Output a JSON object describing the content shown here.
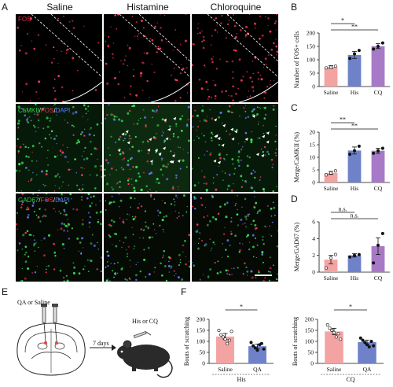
{
  "panel_letters": {
    "a": "A",
    "b": "B",
    "c": "C",
    "d": "D",
    "e": "E",
    "f": "F"
  },
  "columns": [
    "Saline",
    "Histamine",
    "Chloroquine"
  ],
  "row_labels": {
    "fos": [
      {
        "text": "FOS",
        "color": "#e8304a"
      }
    ],
    "camk": [
      {
        "text": "CaMKII",
        "color": "#33d14a"
      },
      {
        "text": "/",
        "color": "#dddddd"
      },
      {
        "text": "FOS",
        "color": "#e8304a"
      },
      {
        "text": "/",
        "color": "#dddddd"
      },
      {
        "text": "DAPI",
        "color": "#5f7dff"
      }
    ],
    "gad": [
      {
        "text": "GAD67",
        "color": "#33d14a"
      },
      {
        "text": "/",
        "color": "#dddddd"
      },
      {
        "text": "FOS",
        "color": "#e8304a"
      },
      {
        "text": "/",
        "color": "#dddddd"
      },
      {
        "text": "DAPI",
        "color": "#5f7dff"
      }
    ]
  },
  "schematic": {
    "injection_label": "QA or Saline",
    "days_label": "7 days",
    "treatment_label": "His or CQ"
  },
  "chart_data": [
    {
      "panel": "B",
      "type": "bar",
      "categories": [
        "Saline",
        "His",
        "CQ"
      ],
      "values": [
        73,
        118,
        151
      ],
      "errors": [
        5,
        13,
        9
      ],
      "points": [
        [
          70,
          72,
          76
        ],
        [
          105,
          122,
          135
        ],
        [
          140,
          150,
          163
        ]
      ],
      "colors": [
        "#f4a3a3",
        "#6f82c9",
        "#a779c6"
      ],
      "ylabel": "Number of FOS+ cells",
      "yticks": [
        0,
        50,
        100,
        150,
        200
      ],
      "ylim": [
        0,
        200
      ],
      "significance": [
        {
          "from": 0,
          "to": 1,
          "label": "*"
        },
        {
          "from": 0,
          "to": 2,
          "label": "**"
        }
      ]
    },
    {
      "panel": "C",
      "type": "bar",
      "categories": [
        "Saline",
        "His",
        "CQ"
      ],
      "values": [
        3.8,
        12.7,
        12.6
      ],
      "errors": [
        0.6,
        1.4,
        1.0
      ],
      "points": [
        [
          3.0,
          3.8,
          4.6
        ],
        [
          11.2,
          12.6,
          14.4
        ],
        [
          11.6,
          12.6,
          13.6
        ]
      ],
      "colors": [
        "#f4a3a3",
        "#6f82c9",
        "#a779c6"
      ],
      "ylabel": "Merge/CaMKII (%)",
      "yticks": [
        0,
        5,
        10,
        15,
        20
      ],
      "ylim": [
        0,
        20
      ],
      "significance": [
        {
          "from": 0,
          "to": 1,
          "label": "**"
        },
        {
          "from": 0,
          "to": 2,
          "label": "**"
        }
      ]
    },
    {
      "panel": "D",
      "type": "bar",
      "categories": [
        "Saline",
        "His",
        "CQ"
      ],
      "values": [
        1.5,
        2.0,
        3.1
      ],
      "errors": [
        0.5,
        0.2,
        1.0
      ],
      "points": [
        [
          0.5,
          1.7,
          2.1
        ],
        [
          1.8,
          2.0,
          2.1
        ],
        [
          1.1,
          3.2,
          4.6
        ]
      ],
      "colors": [
        "#f4a3a3",
        "#6f82c9",
        "#a779c6"
      ],
      "ylabel": "Merge/GAD67 (%)",
      "yticks": [
        0,
        2,
        4,
        6
      ],
      "ylim": [
        0,
        6
      ],
      "significance": [
        {
          "from": 0,
          "to": 1,
          "label": "n.s."
        },
        {
          "from": 0,
          "to": 2,
          "label": "n.s."
        }
      ]
    },
    {
      "panel": "F-His",
      "type": "bar",
      "categories": [
        "Saline",
        "QA"
      ],
      "group_label": "His",
      "values": [
        122,
        78
      ],
      "errors": [
        14,
        10
      ],
      "points": [
        [
          150,
          130,
          120,
          110,
          90,
          105,
          145
        ],
        [
          95,
          80,
          70,
          60,
          85,
          90,
          65
        ]
      ],
      "colors": [
        "#f4a3a3",
        "#6f82c9"
      ],
      "ylabel": "Bouts of scratching",
      "yticks": [
        0,
        50,
        100,
        150,
        200
      ],
      "ylim": [
        0,
        200
      ],
      "significance": [
        {
          "from": 0,
          "to": 1,
          "label": "*"
        }
      ]
    },
    {
      "panel": "F-CQ",
      "type": "bar",
      "categories": [
        "Saline",
        "QA"
      ],
      "group_label": "CQ",
      "values": [
        145,
        97
      ],
      "errors": [
        14,
        9
      ],
      "points": [
        [
          175,
          160,
          150,
          140,
          120,
          135,
          110
        ],
        [
          115,
          105,
          95,
          85,
          75,
          100,
          80
        ]
      ],
      "colors": [
        "#f4a3a3",
        "#6f82c9"
      ],
      "ylabel": "Bouts of scratching",
      "yticks": [
        0,
        50,
        100,
        150,
        200
      ],
      "ylim": [
        0,
        200
      ],
      "significance": [
        {
          "from": 0,
          "to": 1,
          "label": "*"
        }
      ]
    }
  ]
}
